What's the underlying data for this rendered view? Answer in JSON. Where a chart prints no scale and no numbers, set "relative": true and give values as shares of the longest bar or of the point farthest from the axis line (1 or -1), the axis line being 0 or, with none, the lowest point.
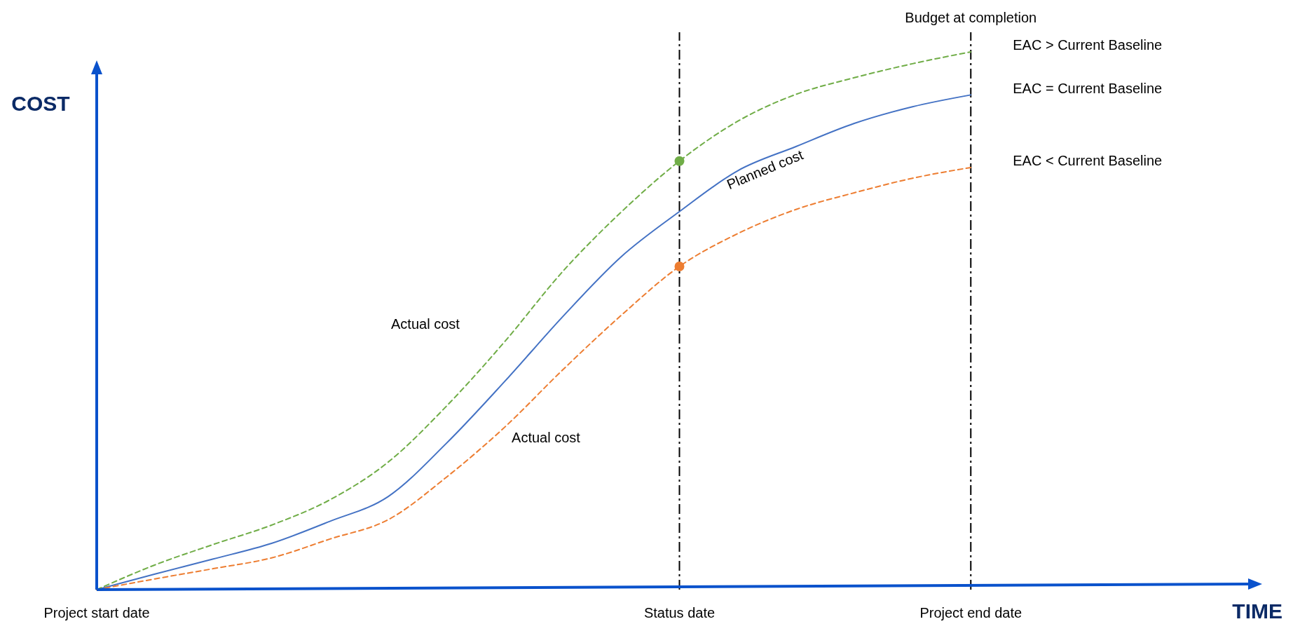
{
  "chart_data": {
    "type": "line",
    "relative": true,
    "xlabel": "TIME",
    "ylabel": "COST",
    "tick_labels": "x",
    "categories": [
      "Project start date",
      null,
      null,
      null,
      null,
      null,
      null,
      null,
      null,
      null,
      "Status date",
      null,
      null,
      null,
      null,
      "Project end date",
      null,
      null,
      null,
      null,
      null
    ],
    "series": [
      {
        "name": "Planned cost",
        "color": "#4472c4",
        "line_style": "solid",
        "values": [
          0,
          0.029,
          0.057,
          0.086,
          0.127,
          0.173,
          0.272,
          0.387,
          0.508,
          0.619,
          0.703,
          0.779,
          0.824,
          0.867,
          0.898,
          0.92,
          null,
          null,
          null,
          null,
          null
        ]
      },
      {
        "name": "Actual cost",
        "color": "#70ad47",
        "line_style": "dashed",
        "values": [
          0,
          0.046,
          0.084,
          0.12,
          0.167,
          0.237,
          0.341,
          0.461,
          0.592,
          0.702,
          0.797,
          0.871,
          0.921,
          0.952,
          0.978,
          1,
          null,
          null,
          null,
          null,
          null
        ]
      },
      {
        "name": "Actual cost",
        "color": "#ed7d31",
        "line_style": "dashed",
        "values": [
          0,
          0.02,
          0.039,
          0.059,
          0.094,
          0.13,
          0.209,
          0.302,
          0.409,
          0.51,
          0.601,
          0.662,
          0.707,
          0.738,
          0.765,
          0.785,
          null,
          null,
          null,
          null,
          null
        ]
      },
      {
        "color": "#70ad47",
        "type": "scatter",
        "marker": "circle",
        "x": [
          "Status date"
        ],
        "values": [
          0.797
        ]
      },
      {
        "color": "#ed7d31",
        "type": "scatter",
        "marker": "circle",
        "x": [
          "Status date"
        ],
        "values": [
          0.601
        ]
      }
    ],
    "ref_lines": [
      {
        "axis": "x",
        "value": "Status date",
        "color": "#000000"
      },
      {
        "axis": "x",
        "value": "Project end date",
        "label": "Budget at completion",
        "color": "#000000"
      }
    ],
    "annotations": [
      "EAC > Current Baseline",
      "EAC = Current Baseline",
      "EAC < Current Baseline"
    ]
  }
}
